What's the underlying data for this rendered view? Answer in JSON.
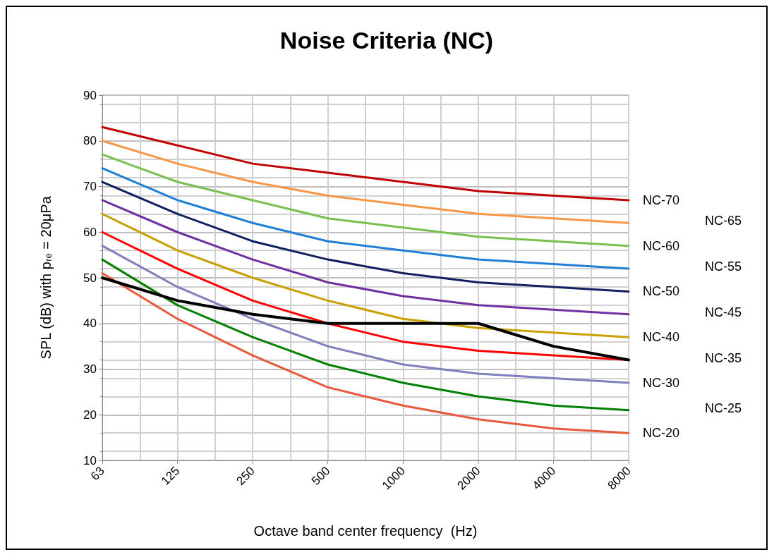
{
  "chart_data": {
    "type": "line",
    "title": "Noise Criteria (NC)",
    "xlabel": "Octave band center frequency  (Hz)",
    "ylabel": "SPL (dB) with p$_{re}$ = 20μPa",
    "categories": [
      "63",
      "125",
      "250",
      "500",
      "1000",
      "2000",
      "4000",
      "8000"
    ],
    "ylim": [
      10,
      90
    ],
    "yticks": [
      10,
      20,
      30,
      40,
      50,
      60,
      70,
      80,
      90
    ],
    "grid": true,
    "legend": false,
    "marker": "none",
    "line_style": "solid",
    "series": [
      {
        "name": "NC-70",
        "color": "#c00000",
        "values": [
          83,
          79,
          75,
          73,
          71,
          69,
          68,
          67
        ]
      },
      {
        "name": "NC-65",
        "color": "#f79646",
        "values": [
          80,
          75,
          71,
          68,
          66,
          64,
          63,
          62
        ]
      },
      {
        "name": "NC-60",
        "color": "#77c050",
        "values": [
          77,
          71,
          67,
          63,
          61,
          59,
          58,
          57
        ]
      },
      {
        "name": "NC-55",
        "color": "#1f7fd6",
        "values": [
          74,
          67,
          62,
          58,
          56,
          54,
          53,
          52
        ]
      },
      {
        "name": "NC-50",
        "color": "#0f1f5f",
        "values": [
          71,
          64,
          58,
          54,
          51,
          49,
          48,
          47
        ]
      },
      {
        "name": "NC-45",
        "color": "#7030a0",
        "values": [
          67,
          60,
          54,
          49,
          46,
          44,
          43,
          42
        ]
      },
      {
        "name": "NC-40",
        "color": "#c9a000",
        "values": [
          64,
          56,
          50,
          45,
          41,
          39,
          38,
          37
        ]
      },
      {
        "name": "NC-35",
        "color": "#ff0000",
        "values": [
          60,
          52,
          45,
          40,
          36,
          34,
          33,
          32
        ]
      },
      {
        "name": "NC-30",
        "color": "#7f7fbf",
        "values": [
          57,
          48,
          41,
          35,
          31,
          29,
          28,
          27
        ]
      },
      {
        "name": "NC-25",
        "color": "#008000",
        "values": [
          54,
          44,
          37,
          31,
          27,
          24,
          22,
          21
        ]
      },
      {
        "name": "NC-20",
        "color": "#e8583a",
        "values": [
          51,
          41,
          33,
          26,
          22,
          19,
          17,
          16
        ]
      },
      {
        "color": "#000000",
        "values": [
          50,
          45,
          42,
          40,
          40,
          40,
          35,
          32
        ]
      }
    ]
  }
}
